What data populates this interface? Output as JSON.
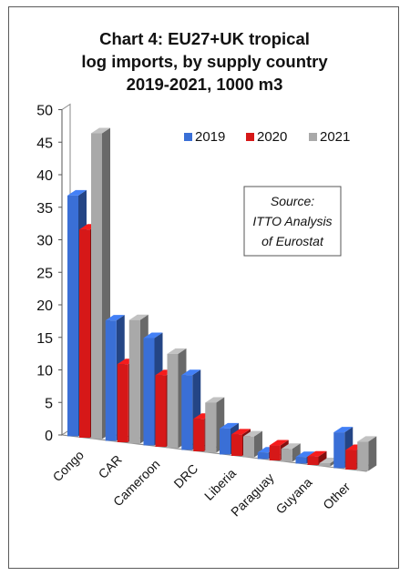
{
  "chart_data": {
    "type": "bar",
    "title_lines": [
      "Chart 4: EU27+UK tropical",
      "log imports, by supply country",
      "2019-2021, 1000 m3"
    ],
    "categories": [
      "Congo",
      "CAR",
      "Cameroon",
      "DRC",
      "Liberia",
      "Paraguay",
      "Guyana",
      "Other"
    ],
    "series": [
      {
        "name": "2019",
        "color": "#3a6fd6",
        "values": [
          37,
          18.5,
          16.5,
          11.5,
          4,
          1,
          1,
          5.5
        ]
      },
      {
        "name": "2020",
        "color": "#d61818",
        "values": [
          32,
          12,
          11,
          5,
          3.3,
          2.3,
          1.3,
          3
        ]
      },
      {
        "name": "2021",
        "color": "#a9a9a9",
        "values": [
          47,
          19,
          14.5,
          7.7,
          3.2,
          2,
          0.5,
          4.5
        ]
      }
    ],
    "y_ticks": [
      "0",
      "5",
      "10",
      "15",
      "20",
      "25",
      "30",
      "35",
      "40",
      "45",
      "50"
    ],
    "ylim": [
      0,
      50
    ],
    "grid": false,
    "legend_position": "top-right",
    "annotation": [
      "Source:",
      "ITTO Analysis",
      "of Eurostat"
    ]
  }
}
